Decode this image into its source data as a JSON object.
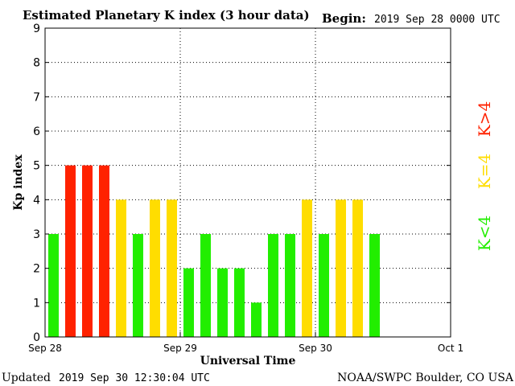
{
  "header": {
    "title": "Estimated Planetary K index (3 hour data)",
    "begin_label": "Begin:",
    "begin_value": "2019 Sep 28 0000 UTC"
  },
  "footer": {
    "updated_label": "Updated",
    "updated_value": "2019 Sep 30 12:30:04 UTC",
    "source": "NOAA/SWPC Boulder, CO USA"
  },
  "legend": {
    "high": "K>4",
    "equal": "K=4",
    "low": "K<4"
  },
  "colors": {
    "high": "#ff2200",
    "equal": "#ffdd00",
    "low": "#22ee00"
  },
  "chart_data": {
    "type": "bar",
    "ylabel": "Kp index",
    "xlabel": "Universal Time",
    "ylim": [
      0,
      9
    ],
    "yticks": [
      0,
      1,
      2,
      3,
      4,
      5,
      6,
      7,
      8,
      9
    ],
    "xticks": [
      "Sep 28",
      "Sep 29",
      "Sep 30",
      "Oct 1"
    ],
    "grid": true,
    "bars_per_day": 8,
    "days": 3,
    "values": [
      3,
      5,
      5,
      5,
      4,
      3,
      4,
      4,
      2,
      3,
      2,
      2,
      1,
      3,
      3,
      4,
      3,
      4,
      4,
      3
    ]
  }
}
